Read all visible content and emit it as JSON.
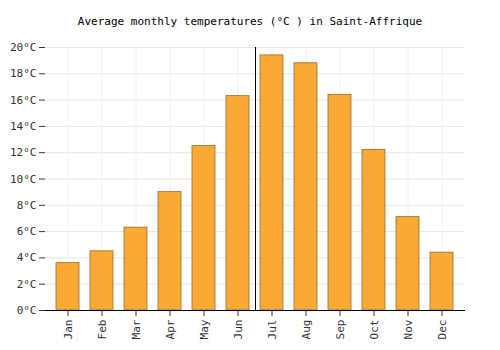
{
  "chart_data": {
    "type": "bar",
    "title": "Average monthly temperatures (°C ) in Saint-Affrique",
    "categories": [
      "Jan",
      "Feb",
      "Mar",
      "Apr",
      "May",
      "Jun",
      "Jul",
      "Aug",
      "Sep",
      "Oct",
      "Nov",
      "Dec"
    ],
    "values": [
      3.6,
      4.5,
      6.3,
      9.0,
      12.5,
      16.3,
      19.4,
      18.8,
      16.4,
      12.2,
      7.1,
      4.4
    ],
    "color": "#fba935",
    "ylim": [
      0,
      20
    ],
    "yticks": [
      {
        "value": 0,
        "label": "0°C"
      },
      {
        "value": 2,
        "label": "2°C"
      },
      {
        "value": 4,
        "label": "4°C"
      },
      {
        "value": 6,
        "label": "6°C"
      },
      {
        "value": 8,
        "label": "8°C"
      },
      {
        "value": 10,
        "label": "10°C"
      },
      {
        "value": 12,
        "label": "12°C"
      },
      {
        "value": 14,
        "label": "14°C"
      },
      {
        "value": 16,
        "label": "16°C"
      },
      {
        "value": 18,
        "label": "18°C"
      },
      {
        "value": 20,
        "label": "20°C"
      }
    ],
    "grid": true
  }
}
